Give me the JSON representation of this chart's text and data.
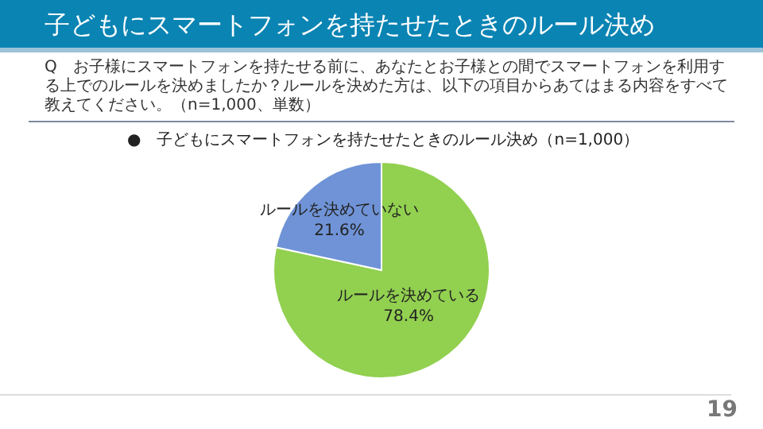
{
  "chart_data": {
    "type": "pie",
    "title": "子どもにスマートフォンを持たせたときのルール決め",
    "subtitle": "Q　お子様にスマートフォンを持たせる前に、あなたとお子様との間でスマートフォンを利用する上でのルールを決めましたか？ルールを決めた方は、以下の項目からあてはまる内容をすべて教えてください。（n=1,000、単数）",
    "annotations": [
      "●　子どもにスマートフォンを持たせたときのルール決め（n=1,000）",
      "19"
    ],
    "categories": [
      "ルールを決めている",
      "ルールを決めていない"
    ],
    "values": [
      78.4,
      21.6
    ],
    "value_labels": [
      "78.4%",
      "21.6%"
    ],
    "colors": [
      "#92d050",
      "#6f93d6"
    ]
  }
}
